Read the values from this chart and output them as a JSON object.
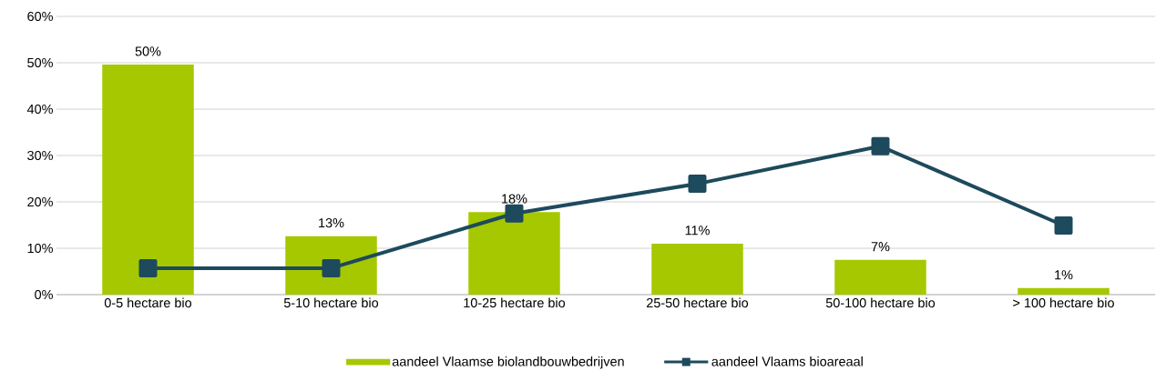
{
  "chart_data": {
    "type": "bar",
    "categories": [
      "0-5 hectare bio",
      "5-10 hectare bio",
      "10-25 hectare bio",
      "25-50 hectare bio",
      "50-100 hectare bio",
      "> 100 hectare bio"
    ],
    "series": [
      {
        "name": "aandeel Vlaamse biolandbouwbedrijven",
        "color": "#a5c800",
        "values": [
          49.6,
          12.6,
          17.8,
          11.0,
          7.5,
          1.4
        ],
        "value_labels": [
          "50%",
          "13%",
          "18%",
          "11%",
          "7%",
          "1%"
        ]
      },
      {
        "name": "aandeel Vlaams bioareaal",
        "type": "line",
        "color": "#1d4a5c",
        "marker": "square",
        "values": [
          5.7,
          5.7,
          17.5,
          23.9,
          32.0,
          14.9
        ]
      }
    ],
    "ylim": [
      0,
      60
    ],
    "yticks": [
      {
        "value": 0,
        "label": "0%"
      },
      {
        "value": 10,
        "label": "10%"
      },
      {
        "value": 20,
        "label": "20%"
      },
      {
        "value": 30,
        "label": "30%"
      },
      {
        "value": 40,
        "label": "40%"
      },
      {
        "value": 50,
        "label": "50%"
      },
      {
        "value": 60,
        "label": "60%"
      }
    ],
    "grid": "y",
    "legend": "bottom"
  }
}
